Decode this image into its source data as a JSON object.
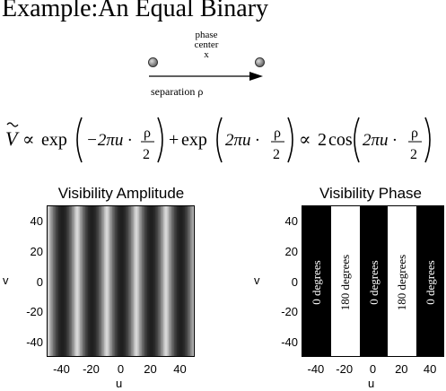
{
  "title": "Example:An Equal Binary",
  "diagram": {
    "phase_label_line1": "phase",
    "phase_label_line2": "center",
    "center_marker": "x",
    "separation_label": "separation ρ"
  },
  "formula": {
    "lhs": "V",
    "propto": "∝",
    "exp": "exp",
    "term1_arg": "−2πu ·",
    "term2_arg": "2πu ·",
    "plus": "+",
    "rhs_coef": "2",
    "cos": "cos",
    "frac_num": "ρ",
    "frac_den": "2"
  },
  "amplitude_panel": {
    "title": "Visibility Amplitude",
    "xlabel": "u",
    "ylabel": "v",
    "x_ticks": [
      "-40",
      "-20",
      "0",
      "20",
      "40"
    ],
    "y_ticks": [
      "40",
      "20",
      "0",
      "-20",
      "-40"
    ],
    "xlim": [
      -50,
      50
    ],
    "ylim": [
      -50,
      50
    ],
    "fringe_period_u": 20,
    "fringe_max_at_u": [
      -40,
      -20,
      0,
      20,
      40
    ]
  },
  "phase_panel": {
    "title": "Visibility Phase",
    "xlabel": "u",
    "ylabel": "v",
    "x_ticks": [
      "-40",
      "-20",
      "0",
      "20",
      "40"
    ],
    "y_ticks": [
      "40",
      "20",
      "0",
      "-20",
      "-40"
    ],
    "xlim": [
      -50,
      50
    ],
    "ylim": [
      -50,
      50
    ],
    "bands": [
      {
        "u_from": -50,
        "u_to": -30,
        "color": "#000000",
        "label": "0 degrees",
        "text_color": "#ffffff"
      },
      {
        "u_from": -30,
        "u_to": -10,
        "color": "#ffffff",
        "label": "180 degrees",
        "text_color": "#000000"
      },
      {
        "u_from": -10,
        "u_to": 10,
        "color": "#000000",
        "label": "0 degrees",
        "text_color": "#ffffff"
      },
      {
        "u_from": 10,
        "u_to": 30,
        "color": "#ffffff",
        "label": "180 degrees",
        "text_color": "#000000"
      },
      {
        "u_from": 30,
        "u_to": 50,
        "color": "#000000",
        "label": "0 degrees",
        "text_color": "#ffffff"
      }
    ]
  }
}
